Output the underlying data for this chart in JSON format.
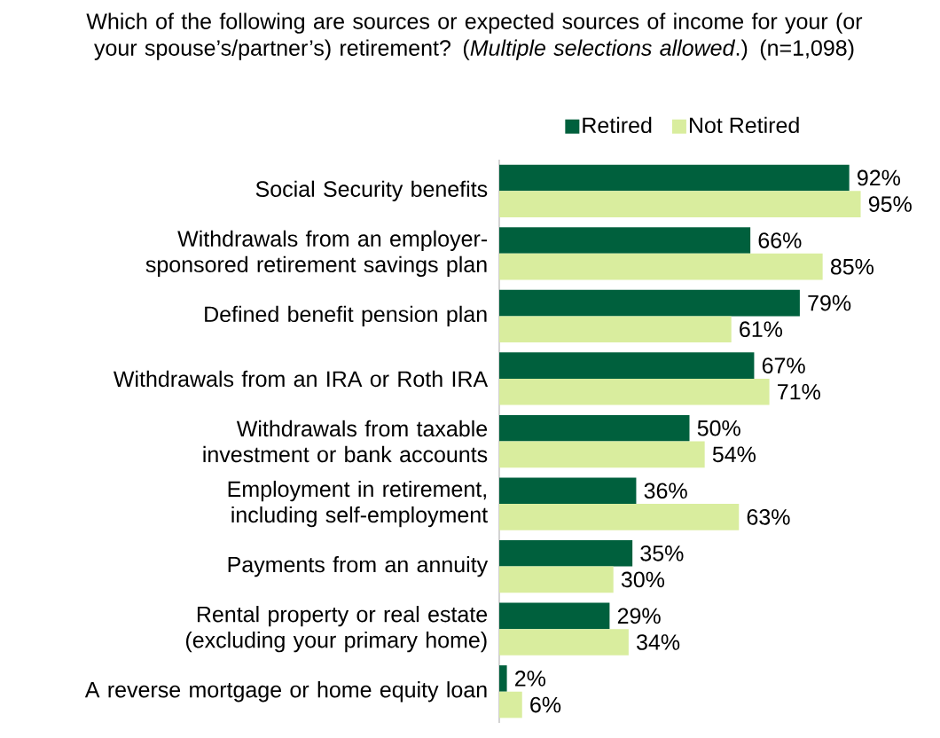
{
  "chart_data": {
    "type": "bar",
    "orientation": "horizontal",
    "title": "Which of the following are sources or expected sources of income for your (or your spouse’s/partner’s) retirement? (*Multiple selections allowed*.) (n=1,098)",
    "categories": [
      "Social Security benefits",
      "Withdrawals from an employer-sponsored retirement savings plan",
      "Defined benefit pension plan",
      "Withdrawals from an IRA or Roth IRA",
      "Withdrawals from taxable investment or bank accounts",
      "Employment in retirement, including self-employment",
      "Payments from an annuity",
      "Rental property or real estate (excluding your primary home)",
      "A reverse mortgage or home equity loan"
    ],
    "series": [
      {
        "name": "Retired",
        "color": "#00603d",
        "values": [
          92,
          66,
          79,
          67,
          50,
          36,
          35,
          29,
          2
        ],
        "value_labels": [
          "92%",
          "66%",
          "79%",
          "67%",
          "50%",
          "36%",
          "35%",
          "29%",
          "2%"
        ]
      },
      {
        "name": "Not Retired",
        "color": "#d9ed9e",
        "values": [
          95,
          85,
          61,
          71,
          54,
          63,
          30,
          34,
          6
        ],
        "value_labels": [
          "95%",
          "85%",
          "61%",
          "71%",
          "54%",
          "63%",
          "30%",
          "34%",
          "6%"
        ]
      }
    ],
    "tick_labels": "y",
    "legend": "top"
  }
}
